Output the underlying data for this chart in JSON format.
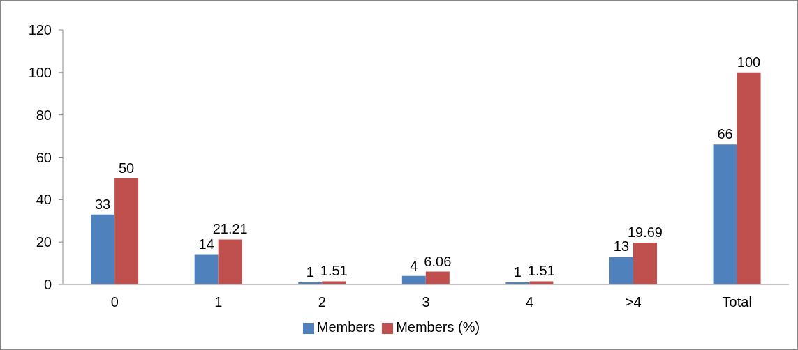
{
  "chart_data": {
    "type": "bar",
    "categories": [
      "0",
      "1",
      "2",
      "3",
      "4",
      ">4",
      "Total"
    ],
    "series": [
      {
        "name": "Members",
        "color": "#4f81bd",
        "values": [
          33,
          14,
          1,
          4,
          1,
          13,
          66
        ]
      },
      {
        "name": "Members (%)",
        "color": "#c0504d",
        "values": [
          50,
          21.21,
          1.51,
          6.06,
          1.51,
          19.69,
          100
        ]
      }
    ],
    "ylim": [
      0,
      120
    ],
    "yticks": [
      0,
      20,
      40,
      60,
      80,
      100,
      120
    ],
    "data_labels": true,
    "legend": "bottom",
    "grid": false
  }
}
